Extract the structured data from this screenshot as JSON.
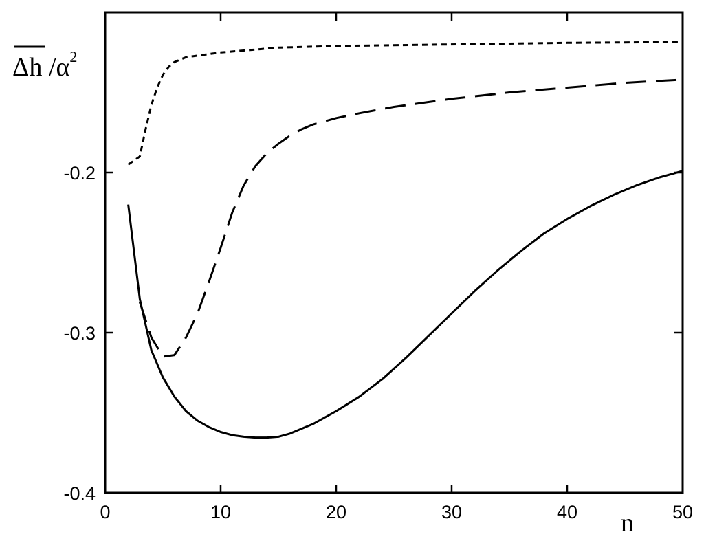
{
  "chart_data": {
    "type": "line",
    "title": "",
    "xlabel": "n",
    "ylabel": {
      "main": "Δh",
      "divider": " /α",
      "superscript": "2"
    },
    "xlim": [
      0,
      50
    ],
    "ylim": [
      -0.4,
      -0.1
    ],
    "x_ticks": [
      0,
      10,
      20,
      30,
      40,
      50
    ],
    "y_ticks": [
      -0.2,
      -0.3,
      -0.4
    ],
    "y_tick_labels": [
      "-0.2",
      "-0.3",
      "-0.4"
    ],
    "grid": false,
    "legend": "none",
    "series": [
      {
        "style": "solid",
        "color": "#000000",
        "x": [
          2,
          3,
          4,
          5,
          6,
          7,
          8,
          9,
          10,
          11,
          12,
          13,
          14,
          15,
          16,
          17,
          18,
          19,
          20,
          22,
          24,
          26,
          28,
          30,
          32,
          34,
          36,
          38,
          40,
          42,
          44,
          46,
          48,
          50
        ],
        "y": [
          -0.22,
          -0.279,
          -0.311,
          -0.328,
          -0.34,
          -0.349,
          -0.355,
          -0.359,
          -0.362,
          -0.364,
          -0.365,
          -0.3655,
          -0.3655,
          -0.365,
          -0.363,
          -0.36,
          -0.357,
          -0.353,
          -0.349,
          -0.34,
          -0.329,
          -0.316,
          -0.302,
          -0.288,
          -0.274,
          -0.261,
          -0.249,
          -0.238,
          -0.229,
          -0.221,
          -0.214,
          -0.208,
          -0.203,
          -0.199
        ]
      },
      {
        "style": "dashed",
        "color": "#000000",
        "x": [
          3,
          4,
          5,
          6,
          7,
          8,
          9,
          10,
          11,
          12,
          13,
          14,
          15,
          16,
          17,
          18,
          20,
          22,
          25,
          28,
          30,
          35,
          40,
          45,
          50
        ],
        "y": [
          -0.281,
          -0.303,
          -0.315,
          -0.314,
          -0.303,
          -0.288,
          -0.268,
          -0.247,
          -0.225,
          -0.208,
          -0.196,
          -0.188,
          -0.182,
          -0.177,
          -0.173,
          -0.17,
          -0.166,
          -0.163,
          -0.159,
          -0.156,
          -0.154,
          -0.15,
          -0.147,
          -0.144,
          -0.142
        ]
      },
      {
        "style": "dotted",
        "color": "#000000",
        "x": [
          2,
          3,
          3.5,
          4,
          4.5,
          5,
          5.5,
          6,
          7,
          8,
          10,
          15,
          20,
          30,
          40,
          50
        ],
        "y": [
          -0.195,
          -0.19,
          -0.173,
          -0.158,
          -0.147,
          -0.139,
          -0.134,
          -0.131,
          -0.128,
          -0.127,
          -0.125,
          -0.122,
          -0.121,
          -0.12,
          -0.119,
          -0.1185
        ]
      }
    ]
  }
}
